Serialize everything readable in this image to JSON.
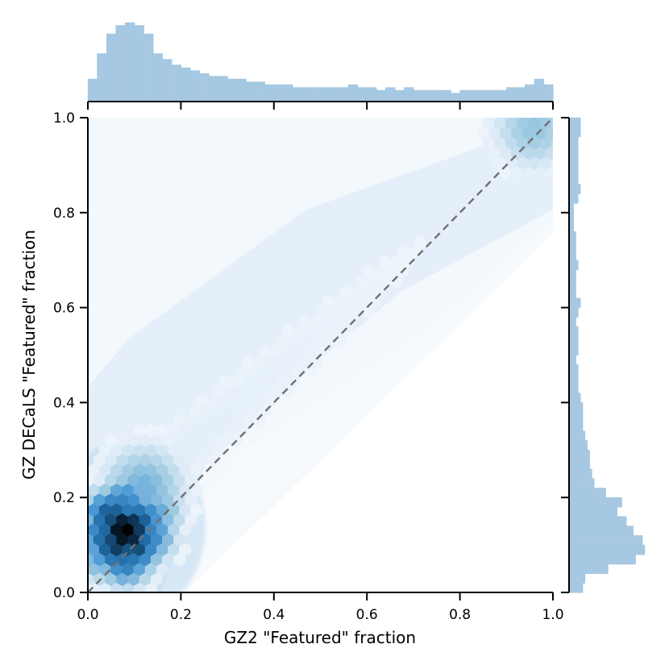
{
  "chart_data": {
    "type": "hexbin-joint",
    "xlabel": "GZ2 \"Featured\" fraction",
    "ylabel": "GZ DECaLS \"Featured\" fraction",
    "xlim": [
      0.0,
      1.0
    ],
    "ylim": [
      0.0,
      1.0
    ],
    "x_ticks": [
      "0.0",
      "0.2",
      "0.4",
      "0.6",
      "0.8",
      "1.0"
    ],
    "y_ticks": [
      "0.0",
      "0.2",
      "0.4",
      "0.6",
      "0.8",
      "1.0"
    ],
    "reference_line": {
      "style": "dashed",
      "from": [
        0.0,
        0.0
      ],
      "to": [
        1.0,
        1.0
      ]
    },
    "colormap": [
      "#ffffff",
      "#deebf7",
      "#9ecae1",
      "#4a98d6",
      "#1f6ba5",
      "#0b2a45",
      "#000000"
    ],
    "hex_density": [
      {
        "x": 0.08,
        "y": 0.13,
        "density": 1.0
      },
      {
        "x": 0.06,
        "y": 0.1,
        "density": 0.8
      },
      {
        "x": 0.1,
        "y": 0.1,
        "density": 0.78
      },
      {
        "x": 0.05,
        "y": 0.16,
        "density": 0.75
      },
      {
        "x": 0.11,
        "y": 0.15,
        "density": 0.72
      },
      {
        "x": 0.04,
        "y": 0.12,
        "density": 0.7
      },
      {
        "x": 0.08,
        "y": 0.07,
        "density": 0.65
      },
      {
        "x": 0.13,
        "y": 0.12,
        "density": 0.6
      },
      {
        "x": 0.08,
        "y": 0.19,
        "density": 0.58
      },
      {
        "x": 0.03,
        "y": 0.08,
        "density": 0.5
      },
      {
        "x": 0.15,
        "y": 0.17,
        "density": 0.45
      },
      {
        "x": 0.12,
        "y": 0.22,
        "density": 0.42
      },
      {
        "x": 0.96,
        "y": 0.98,
        "density": 0.35
      }
    ],
    "marginal_x": {
      "bins": 50,
      "counts": [
        8,
        17,
        24,
        27,
        28,
        27,
        24,
        17,
        15,
        13,
        12,
        11,
        10,
        9,
        9,
        8,
        8,
        7,
        7,
        6,
        6,
        6,
        5,
        5,
        5,
        5,
        5,
        5,
        6,
        5,
        5,
        4,
        5,
        4,
        5,
        4,
        4,
        4,
        4,
        3,
        4,
        4,
        4,
        4,
        4,
        5,
        5,
        6,
        8,
        6
      ]
    },
    "marginal_y": {
      "bins": 50,
      "counts": [
        6,
        7,
        17,
        29,
        33,
        32,
        28,
        25,
        21,
        23,
        16,
        11,
        10,
        9,
        9,
        8,
        7,
        6,
        6,
        6,
        5,
        4,
        4,
        4,
        3,
        4,
        4,
        4,
        3,
        4,
        5,
        3,
        3,
        3,
        4,
        3,
        3,
        3,
        2,
        2,
        2,
        4,
        5,
        4,
        4,
        4,
        4,
        4,
        5,
        5
      ]
    }
  }
}
